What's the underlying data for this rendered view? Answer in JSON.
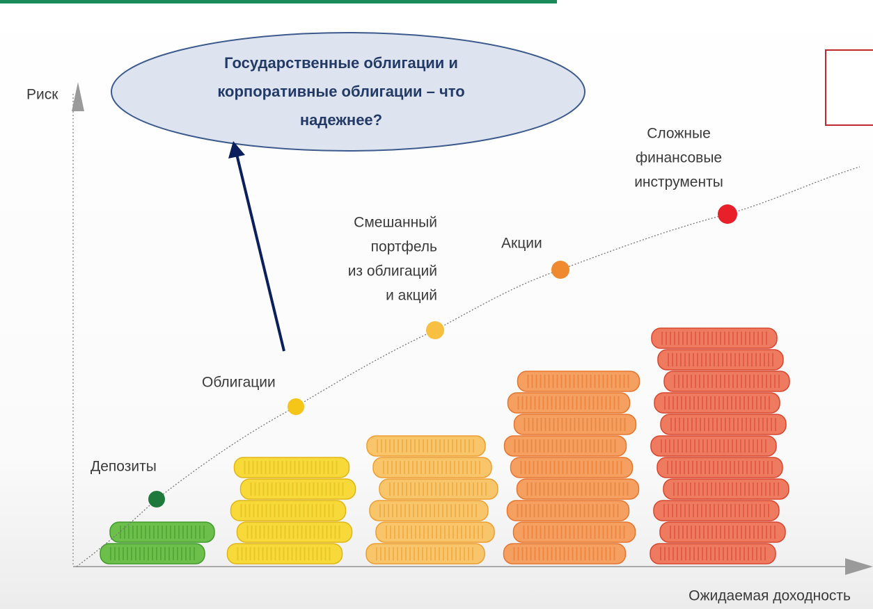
{
  "axes": {
    "y_label": "Риск",
    "x_label": "Ожидаемая доходность"
  },
  "callout": {
    "lines": [
      "Государственные облигации и",
      "корпоративные облигации – что",
      "надежнее?"
    ]
  },
  "points": [
    {
      "lines": [
        "Депозиты"
      ]
    },
    {
      "lines": [
        "Облигации"
      ]
    },
    {
      "lines": [
        "Смешанный",
        "портфель",
        "из облигаций",
        "и акций"
      ]
    },
    {
      "lines": [
        "Акции"
      ]
    },
    {
      "lines": [
        "Сложные",
        "финансовые",
        "инструменты"
      ]
    }
  ]
}
